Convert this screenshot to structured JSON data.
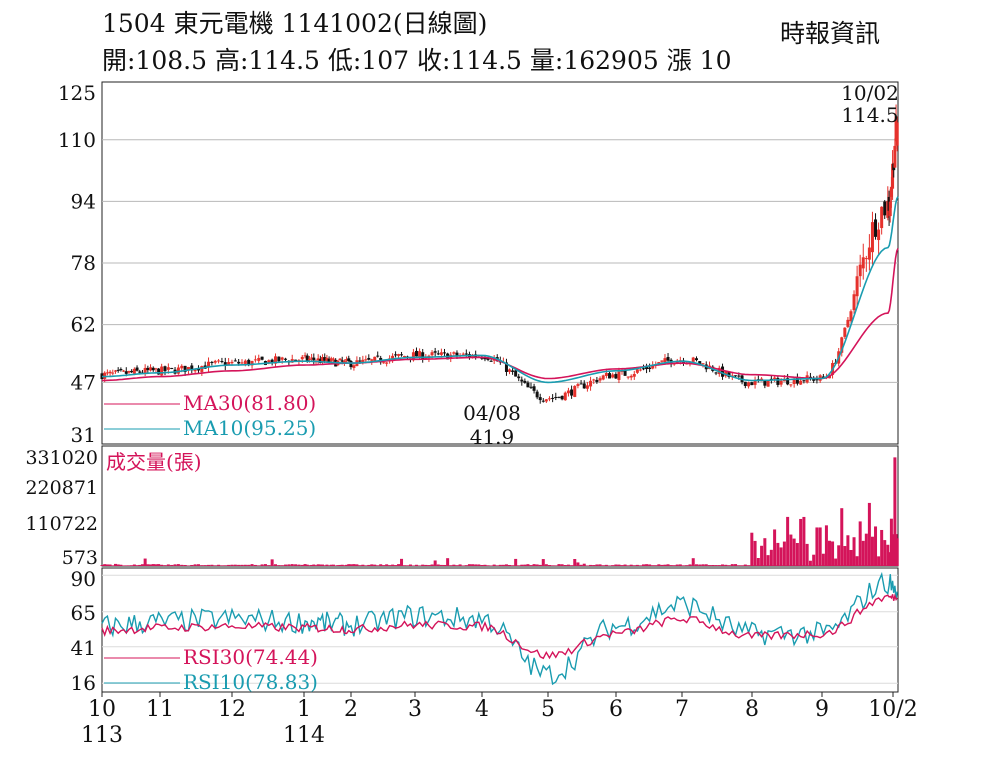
{
  "header": {
    "title": "1504 東元電機 1141002(日線圖)",
    "ohlc": "開:108.5 高:114.5 低:107 收:114.5 量:162905 漲 10",
    "source": "時報資訊"
  },
  "colors": {
    "up": "#e5312c",
    "down": "#111111",
    "ma30": "#d4145a",
    "ma10": "#1a9cb0",
    "volume": "#d4145a",
    "grid": "#b8b8b8"
  },
  "chart_data": [
    {
      "type": "candlestick",
      "name": "price",
      "ylim": [
        31,
        125
      ],
      "y_ticks": [
        "125",
        "110",
        "94",
        "78",
        "62",
        "47",
        "31"
      ],
      "y_tick_values": [
        125,
        110,
        94,
        78,
        62,
        47,
        31
      ],
      "annotations": [
        {
          "date": "10/02",
          "value": "114.5",
          "label_top": "10/02",
          "label_bottom": "114.5"
        },
        {
          "date": "04/08",
          "value": "41.9",
          "label_top": "04/08",
          "label_bottom": "41.9"
        }
      ],
      "legend": [
        {
          "name": "MA30(81.80)",
          "color": "#d4145a"
        },
        {
          "name": "MA10(95.25)",
          "color": "#1a9cb0"
        }
      ],
      "anchors_month": [
        0,
        1,
        2,
        3,
        4,
        5,
        6,
        7,
        8,
        9,
        10,
        11,
        12,
        12.4
      ],
      "close_anchors": [
        49,
        50,
        52,
        53,
        52,
        54,
        54,
        43,
        49,
        53,
        47,
        48,
        93,
        114.5
      ],
      "ma30_anchors": [
        47.5,
        48.5,
        50,
        51.5,
        52,
        53,
        53.5,
        48,
        50.5,
        52,
        49,
        48,
        65,
        81.8
      ],
      "ma10_anchors": [
        48.5,
        49.5,
        51.5,
        52.5,
        52,
        53.5,
        54,
        47,
        50,
        52.5,
        47.5,
        48,
        82,
        95.25
      ],
      "last": {
        "open": 108.5,
        "high": 114.5,
        "low": 107,
        "close": 114.5
      }
    },
    {
      "type": "bar",
      "name": "volume",
      "title": "成交量(張)",
      "ylim": [
        0,
        331020
      ],
      "y_ticks": [
        "331020",
        "220871",
        "110722",
        "573"
      ],
      "y_tick_values": [
        331020,
        220871,
        110722,
        573
      ],
      "spikes": [
        {
          "month": 12.27,
          "value": 310000
        },
        {
          "month": 11.72,
          "value": 180000
        },
        {
          "month": 11.3,
          "value": 165000
        },
        {
          "month": 10.75,
          "value": 140000
        },
        {
          "month": 10.95,
          "value": 110000
        },
        {
          "month": 10.0,
          "value": 95000
        },
        {
          "month": 12.45,
          "value": 155000
        },
        {
          "month": 12.15,
          "value": 135000
        }
      ]
    },
    {
      "type": "line",
      "name": "rsi",
      "ylim": [
        10,
        95
      ],
      "y_ticks": [
        "90",
        "65",
        "41",
        "16"
      ],
      "y_tick_values": [
        90,
        65,
        41,
        16
      ],
      "legend": [
        {
          "name": "RSI30(74.44)",
          "color": "#d4145a"
        },
        {
          "name": "RSI10(78.83)",
          "color": "#1a9cb0"
        }
      ],
      "rsi10_anchors": [
        55,
        58,
        60,
        58,
        56,
        62,
        60,
        22,
        55,
        70,
        50,
        50,
        85,
        78.83
      ],
      "rsi30_anchors": [
        52,
        54,
        55,
        54,
        53,
        56,
        55,
        35,
        50,
        60,
        48,
        50,
        75,
        74.44
      ]
    }
  ],
  "x_axis": {
    "labels": [
      {
        "month": 0,
        "label": "10",
        "year": "113"
      },
      {
        "month": 1,
        "label": "11"
      },
      {
        "month": 2,
        "label": "12"
      },
      {
        "month": 3,
        "label": "1",
        "year": "114"
      },
      {
        "month": 4,
        "label": "2"
      },
      {
        "month": 5,
        "label": "3"
      },
      {
        "month": 6,
        "label": "4"
      },
      {
        "month": 7,
        "label": "5"
      },
      {
        "month": 8,
        "label": "6"
      },
      {
        "month": 9,
        "label": "7"
      },
      {
        "month": 10,
        "label": "8"
      },
      {
        "month": 11,
        "label": "9"
      },
      {
        "month": 12,
        "label": "10/2"
      }
    ]
  }
}
